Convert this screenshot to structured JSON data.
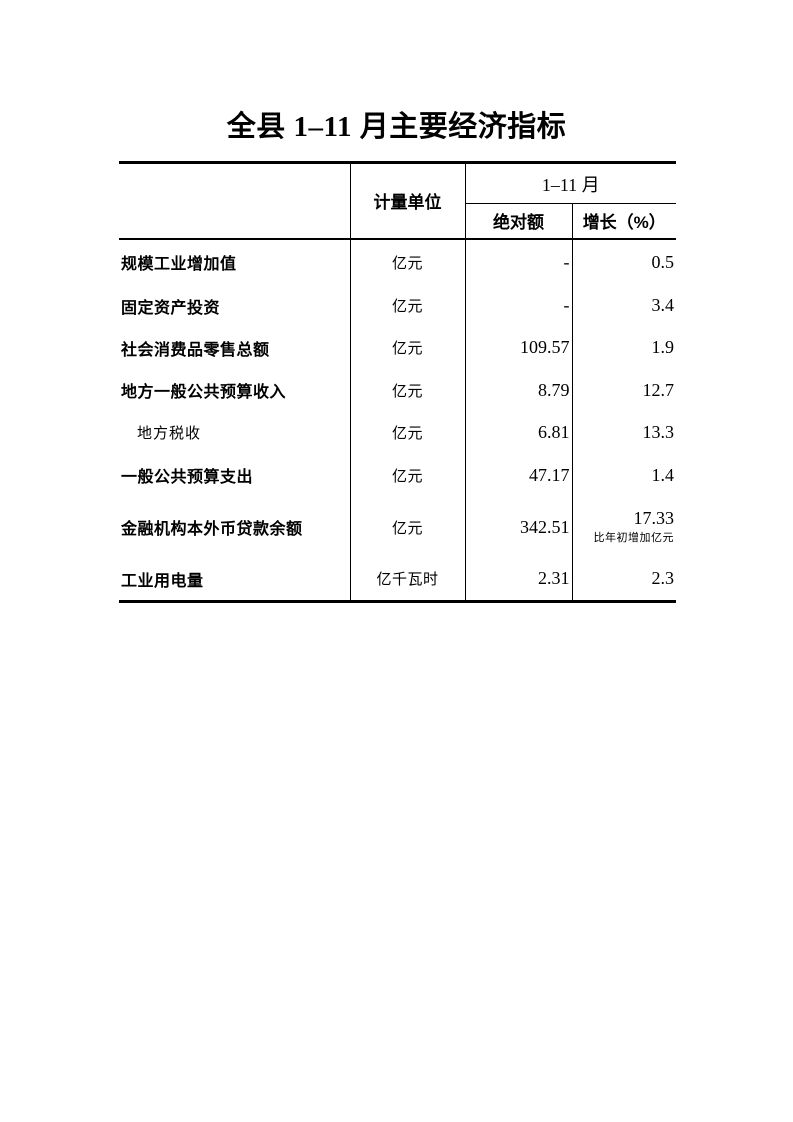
{
  "page_title": "全县 1–11 月主要经济指标",
  "table": {
    "header": {
      "unit_col": "计量单位",
      "period_col": "1–11 月",
      "absolute_col": "绝对额",
      "growth_col": "增长（%）"
    },
    "rows": [
      {
        "indicator": "规模工业增加值",
        "unit": "亿元",
        "absolute": "-",
        "growth": "0.5"
      },
      {
        "indicator": "固定资产投资",
        "unit": "亿元",
        "absolute": "-",
        "growth": "3.4"
      },
      {
        "indicator": "社会消费品零售总额",
        "unit": "亿元",
        "absolute": "109.57",
        "growth": "1.9"
      },
      {
        "indicator": "地方一般公共预算收入",
        "unit": "亿元",
        "absolute": "8.79",
        "growth": "12.7"
      },
      {
        "indicator": "地方税收",
        "unit": "亿元",
        "absolute": "6.81",
        "growth": "13.3"
      },
      {
        "indicator": "一般公共预算支出",
        "unit": "亿元",
        "absolute": "47.17",
        "growth": "1.4"
      },
      {
        "indicator": "金融机构本外币贷款余额",
        "unit": "亿元",
        "absolute": "342.51",
        "growth": "17.33",
        "growth_note": "比年初增加亿元"
      },
      {
        "indicator": "工业用电量",
        "unit": "亿千瓦时",
        "absolute": "2.31",
        "growth": "2.3"
      }
    ]
  },
  "colors": {
    "text": "#000000",
    "border": "#000000",
    "background": "#ffffff"
  }
}
